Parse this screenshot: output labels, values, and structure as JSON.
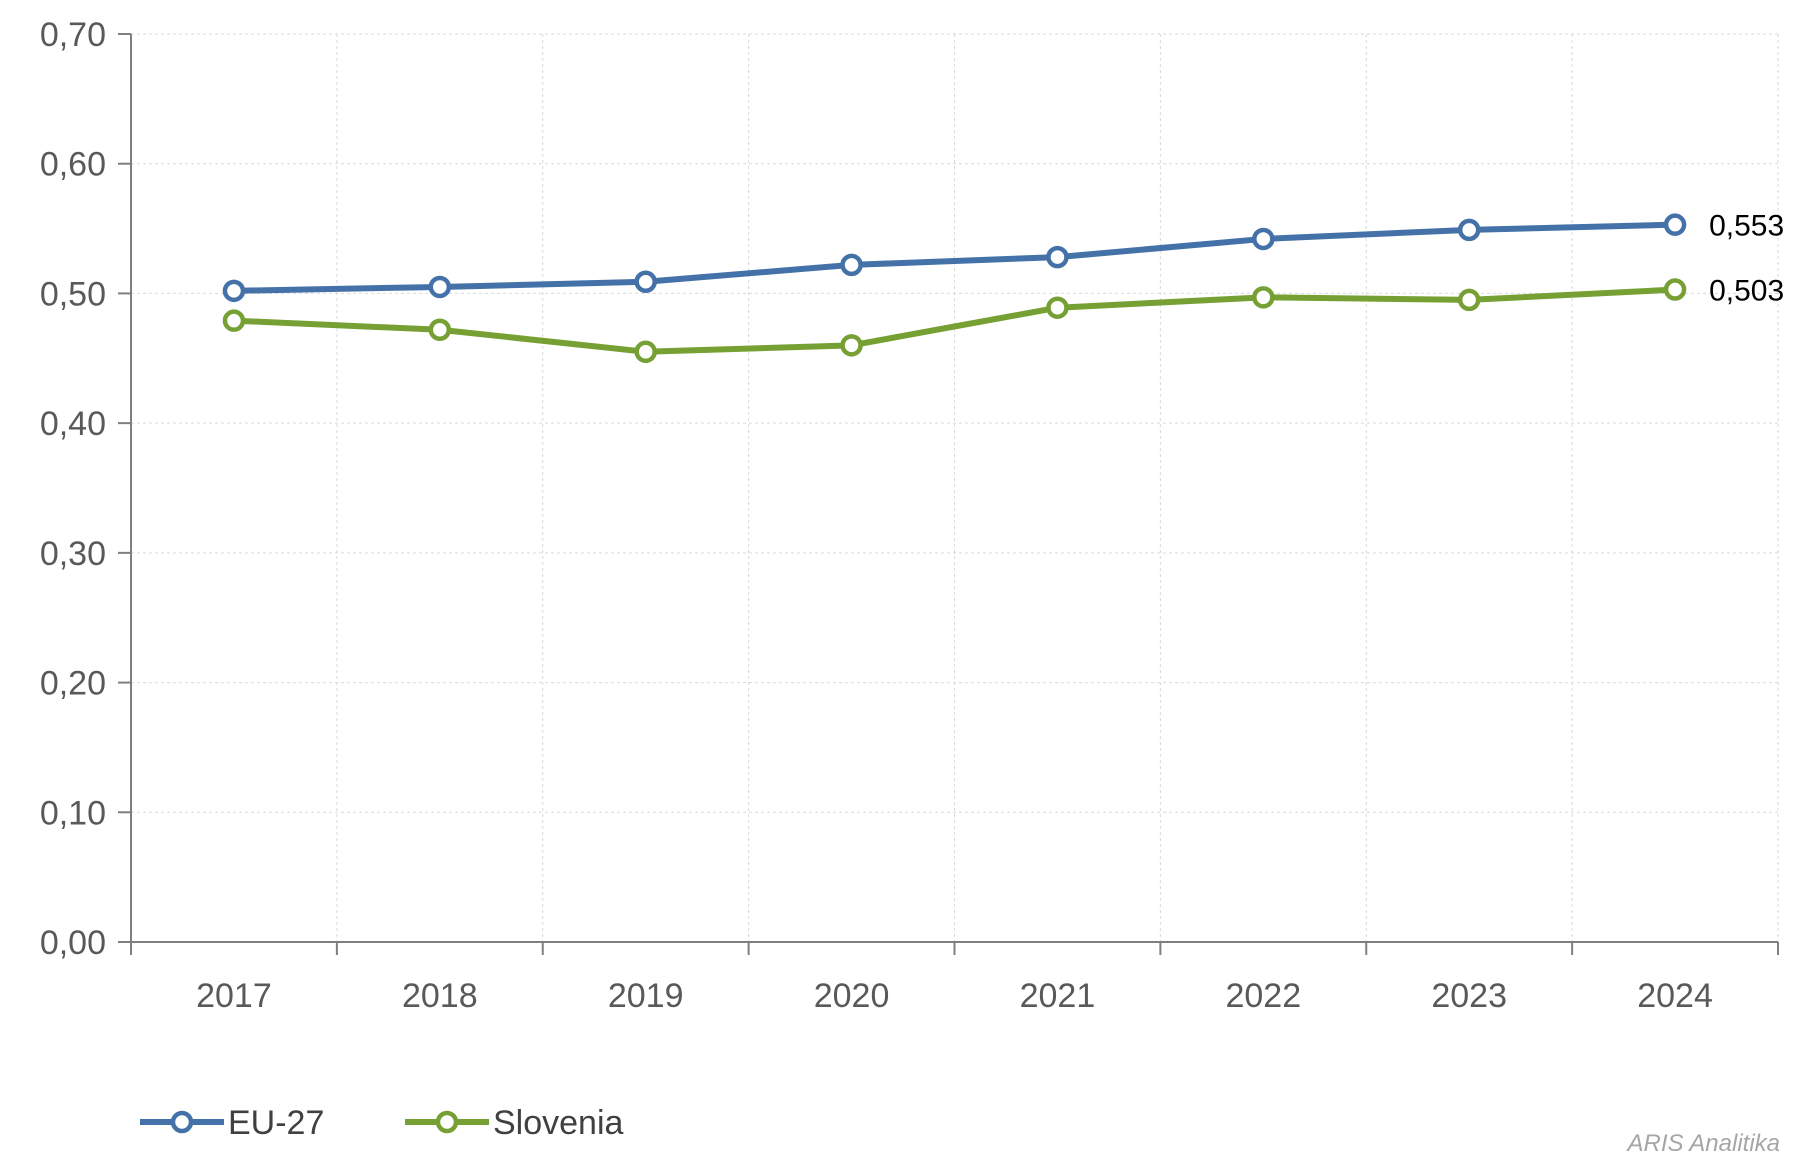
{
  "chart_data": {
    "type": "line",
    "title": "",
    "xlabel": "",
    "ylabel": "",
    "categories": [
      "2017",
      "2018",
      "2019",
      "2020",
      "2021",
      "2022",
      "2023",
      "2024"
    ],
    "ylim": [
      0,
      0.7
    ],
    "yticks": [
      0,
      0.1,
      0.2,
      0.3,
      0.4,
      0.5,
      0.6,
      0.7
    ],
    "ytick_labels": [
      "0,00",
      "0,10",
      "0,20",
      "0,30",
      "0,40",
      "0,50",
      "0,60",
      "0,70"
    ],
    "grid": true,
    "legend_position": "bottom-left",
    "series": [
      {
        "name": "EU-27",
        "color": "#4472a8",
        "values": [
          0.502,
          0.505,
          0.509,
          0.522,
          0.528,
          0.542,
          0.549,
          0.553
        ],
        "end_label": "0,553"
      },
      {
        "name": "Slovenia",
        "color": "#76a033",
        "values": [
          0.479,
          0.472,
          0.455,
          0.46,
          0.489,
          0.497,
          0.495,
          0.503
        ],
        "end_label": "0,503"
      }
    ]
  },
  "source": "ARIS Analitika"
}
